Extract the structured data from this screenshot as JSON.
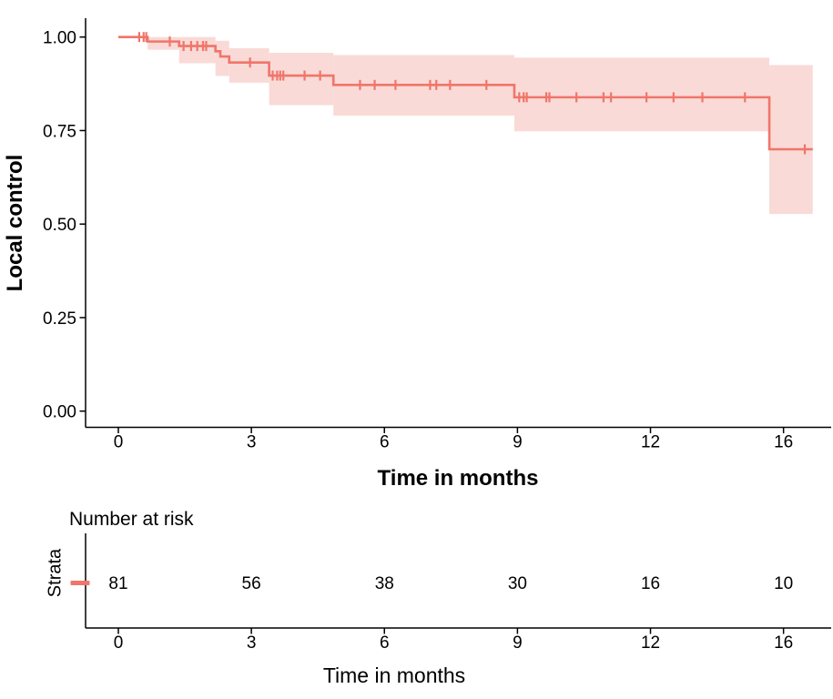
{
  "chart_data": {
    "type": "line",
    "chart_kind": "kaplan-meier-survival",
    "title": "",
    "xlabel": "Time in months",
    "ylabel": "Local control",
    "grid": false,
    "legend_position": "none",
    "colors": {
      "line": "#F0756A",
      "band": "#F9DAD7",
      "axis": "#000000",
      "text": "#000000"
    },
    "x_axis": {
      "note": "tick labeled 16 is drawn at equal spacing after 12 (axis position 15)",
      "ticks": [
        {
          "label": "0",
          "pos": 0
        },
        {
          "label": "3",
          "pos": 3
        },
        {
          "label": "6",
          "pos": 6
        },
        {
          "label": "9",
          "pos": 9
        },
        {
          "label": "12",
          "pos": 12
        },
        {
          "label": "16",
          "pos": 15
        }
      ]
    },
    "y_axis": {
      "range": [
        0,
        1
      ],
      "ticks": [
        {
          "label": "0.00",
          "value": 0.0
        },
        {
          "label": "0.25",
          "value": 0.25
        },
        {
          "label": "0.50",
          "value": 0.5
        },
        {
          "label": "0.75",
          "value": 0.75
        },
        {
          "label": "1.00",
          "value": 1.0
        }
      ]
    },
    "series": {
      "steps": [
        [
          0,
          1.0
        ],
        [
          0.66,
          0.988
        ],
        [
          1.37,
          0.976
        ],
        [
          2.19,
          0.962
        ],
        [
          2.3,
          0.948
        ],
        [
          2.5,
          0.932
        ],
        [
          3.4,
          0.897
        ],
        [
          4.85,
          0.872
        ],
        [
          8.93,
          0.839
        ],
        [
          14.68,
          0.7
        ]
      ],
      "end_time": 15.66,
      "censor_marks": [
        [
          0.47,
          1.0
        ],
        [
          0.57,
          1.0
        ],
        [
          0.63,
          1.0
        ],
        [
          1.16,
          0.988
        ],
        [
          1.47,
          0.976
        ],
        [
          1.64,
          0.976
        ],
        [
          1.78,
          0.976
        ],
        [
          1.91,
          0.976
        ],
        [
          1.98,
          0.976
        ],
        [
          2.97,
          0.932
        ],
        [
          3.48,
          0.897
        ],
        [
          3.58,
          0.897
        ],
        [
          3.65,
          0.897
        ],
        [
          3.72,
          0.897
        ],
        [
          4.2,
          0.897
        ],
        [
          4.55,
          0.897
        ],
        [
          5.45,
          0.872
        ],
        [
          5.78,
          0.872
        ],
        [
          6.25,
          0.872
        ],
        [
          7.03,
          0.872
        ],
        [
          7.17,
          0.872
        ],
        [
          7.48,
          0.872
        ],
        [
          8.3,
          0.872
        ],
        [
          9.04,
          0.839
        ],
        [
          9.14,
          0.839
        ],
        [
          9.21,
          0.839
        ],
        [
          9.65,
          0.839
        ],
        [
          9.72,
          0.839
        ],
        [
          10.33,
          0.839
        ],
        [
          10.94,
          0.839
        ],
        [
          11.11,
          0.839
        ],
        [
          11.91,
          0.839
        ],
        [
          12.52,
          0.839
        ],
        [
          13.17,
          0.839
        ],
        [
          14.13,
          0.839
        ],
        [
          15.48,
          0.7
        ]
      ],
      "confidence_band": [
        [
          0.66,
          1.37,
          1.0,
          0.966
        ],
        [
          1.37,
          2.19,
          1.0,
          0.93
        ],
        [
          2.19,
          2.5,
          0.99,
          0.896
        ],
        [
          2.5,
          3.4,
          0.97,
          0.878
        ],
        [
          3.4,
          4.85,
          0.958,
          0.818
        ],
        [
          4.85,
          8.93,
          0.952,
          0.79
        ],
        [
          8.93,
          14.68,
          0.945,
          0.748
        ],
        [
          14.68,
          15.66,
          0.925,
          0.527
        ]
      ]
    },
    "risk_table": {
      "title": "Number at risk",
      "strata_label": "Strata",
      "xlabel": "Time in months",
      "rows": [
        {
          "legend_glyph": "dash",
          "color": "#F0756A",
          "counts": [
            {
              "pos": 0,
              "n": "81"
            },
            {
              "pos": 3,
              "n": "56"
            },
            {
              "pos": 6,
              "n": "38"
            },
            {
              "pos": 9,
              "n": "30"
            },
            {
              "pos": 12,
              "n": "16"
            },
            {
              "pos": 15,
              "n": "10"
            }
          ]
        }
      ]
    }
  }
}
